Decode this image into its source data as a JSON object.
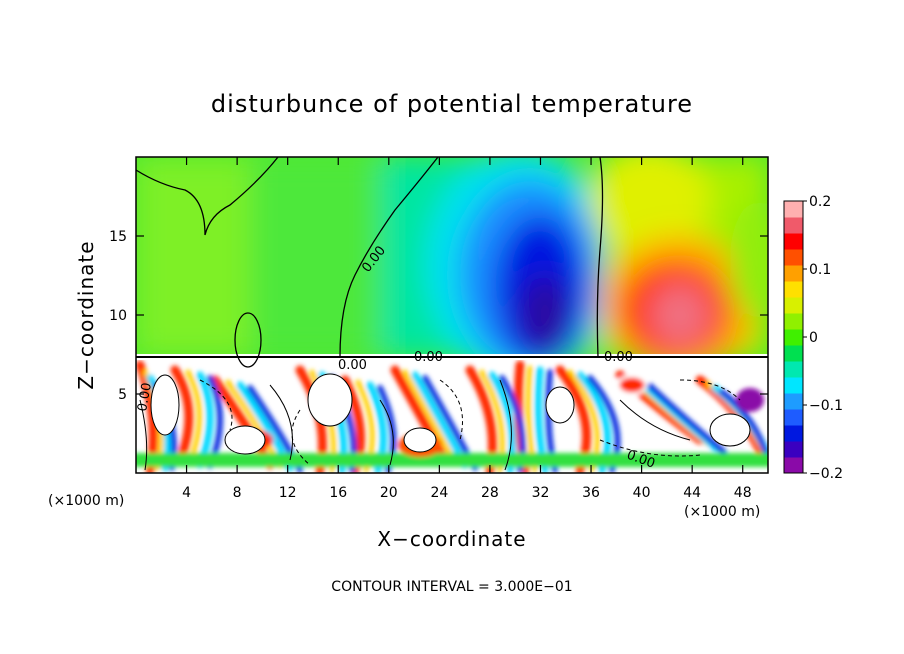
{
  "chart_data": {
    "type": "heatmap",
    "title": "disturbunce of potential temperature",
    "xlabel": "X−coordinate",
    "ylabel": "Z−coordinate",
    "x_unit_left": "(×1000 m)",
    "x_unit_right": "(×1000 m)",
    "x_ticks": [
      "4",
      "8",
      "12",
      "16",
      "20",
      "24",
      "28",
      "32",
      "36",
      "40",
      "44",
      "48"
    ],
    "y_ticks": [
      "5",
      "10",
      "15"
    ],
    "xlim": [
      0,
      50
    ],
    "ylim": [
      0,
      20
    ],
    "colorbar": {
      "range": [
        -0.2,
        0.2
      ],
      "ticks": [
        "0.2",
        "0.1",
        "0",
        "−0.1",
        "−0.2"
      ],
      "colors": [
        "#8a0aa8",
        "#3a00c0",
        "#0018e0",
        "#1e5cff",
        "#1e9cff",
        "#00e6ff",
        "#00e8b0",
        "#00e050",
        "#40f000",
        "#90f000",
        "#d8f000",
        "#ffe000",
        "#ffa000",
        "#ff5000",
        "#ff0000",
        "#f05a6a",
        "#ffb0b0"
      ]
    },
    "contour_labels": [
      "0.00",
      "0.00",
      "0.00",
      "0.00",
      "0.00",
      "0.00"
    ],
    "footer": "CONTOUR INTERVAL = 3.000E−01"
  }
}
